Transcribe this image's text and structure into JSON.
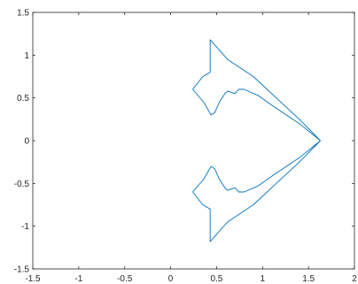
{
  "chart_data": {
    "type": "line",
    "title": "",
    "xlabel": "",
    "ylabel": "",
    "xlim": [
      -1.5,
      2
    ],
    "ylim": [
      -1.5,
      1.5
    ],
    "x_ticks": [
      -1.5,
      -1,
      -0.5,
      0,
      0.5,
      1,
      1.5,
      2
    ],
    "x_tick_labels": [
      "-1.5",
      "-1",
      "-0.5",
      "0",
      "0.5",
      "1",
      "1.5",
      "2"
    ],
    "y_ticks": [
      -1.5,
      -1,
      -0.5,
      0,
      0.5,
      1,
      1.5
    ],
    "y_tick_labels": [
      "-1.5",
      "-1",
      "-0.5",
      "0",
      "0.5",
      "1",
      "1.5"
    ],
    "grid": false,
    "legend": "none",
    "series": [
      {
        "color": "#0072BD",
        "x": [
          1.63,
          1.4,
          1.15,
          0.9,
          0.62,
          0.43,
          0.43,
          0.35,
          0.24,
          0.36,
          0.44,
          0.48,
          0.53,
          0.59,
          0.62,
          0.7,
          0.74,
          0.8,
          0.95,
          1.12,
          1.4,
          1.63
        ],
        "y": [
          0.0,
          0.25,
          0.5,
          0.75,
          0.95,
          1.18,
          0.8,
          0.75,
          0.6,
          0.45,
          0.3,
          0.33,
          0.45,
          0.55,
          0.58,
          0.55,
          0.6,
          0.6,
          0.53,
          0.4,
          0.2,
          0.0
        ]
      }
    ]
  },
  "colors": {
    "line": "#0072BD",
    "axes": "#262626",
    "background": "#ffffff"
  }
}
